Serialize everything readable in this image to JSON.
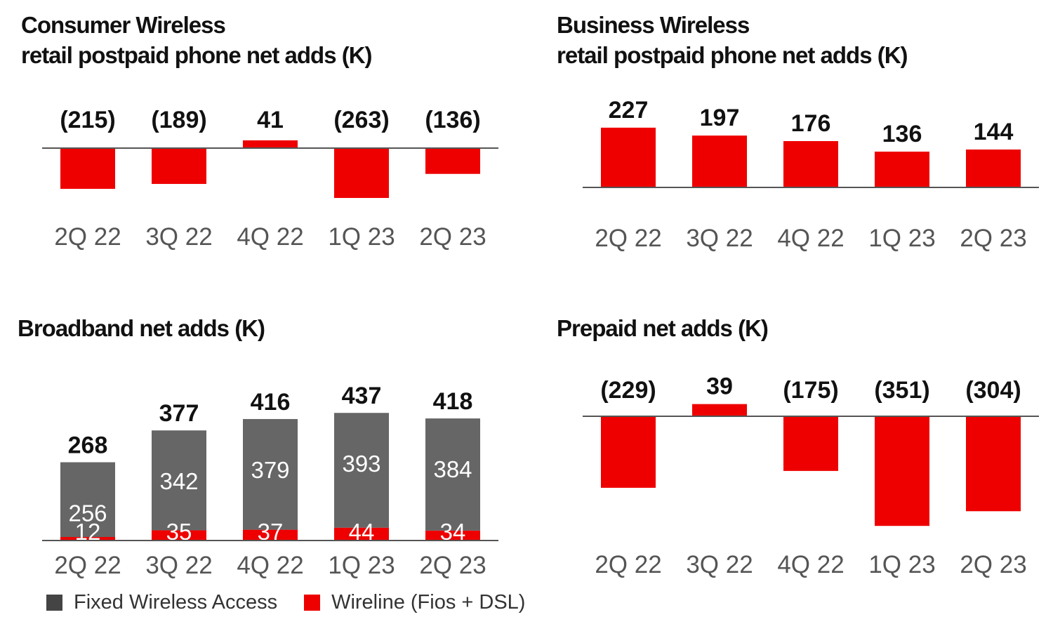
{
  "colors": {
    "red": "#ee0000",
    "gray": "#666666",
    "legend_gray": "#444444",
    "axis": "#555555",
    "value_text": "#111111",
    "tick_text": "#555555"
  },
  "panels": {
    "top_left": {
      "title_line1": "Consumer Wireless",
      "title_line2": "retail postpaid phone net adds (K)"
    },
    "top_right": {
      "title_line1": "Business Wireless",
      "title_line2": "retail postpaid phone net adds (K)"
    },
    "bottom_left": {
      "title": "Broadband net adds (K)"
    },
    "bottom_right": {
      "title": "Prepaid net adds (K)"
    }
  },
  "legend": {
    "fwa_label": "Fixed Wireless Access",
    "wireline_label": "Wireline (Fios + DSL)"
  },
  "chart_data": [
    {
      "id": "top_left",
      "type": "bar",
      "title": "Consumer Wireless retail postpaid phone net adds (K)",
      "categories": [
        "2Q 22",
        "3Q 22",
        "4Q 22",
        "1Q 23",
        "2Q 23"
      ],
      "values": [
        -215,
        -189,
        41,
        -263,
        -136
      ],
      "labels": [
        "(215)",
        "(189)",
        "41",
        "(263)",
        "(136)"
      ],
      "color": "#ee0000"
    },
    {
      "id": "top_right",
      "type": "bar",
      "title": "Business Wireless retail postpaid phone net adds (K)",
      "categories": [
        "2Q 22",
        "3Q 22",
        "4Q 22",
        "1Q 23",
        "2Q 23"
      ],
      "values": [
        227,
        197,
        176,
        136,
        144
      ],
      "labels": [
        "227",
        "197",
        "176",
        "136",
        "144"
      ],
      "color": "#ee0000"
    },
    {
      "id": "bottom_left",
      "type": "bar",
      "stacked": true,
      "title": "Broadband net adds (K)",
      "categories": [
        "2Q 22",
        "3Q 22",
        "4Q 22",
        "1Q 23",
        "2Q 23"
      ],
      "series": [
        {
          "name": "Wireline (Fios + DSL)",
          "values": [
            12,
            35,
            37,
            44,
            34
          ],
          "color": "#ee0000"
        },
        {
          "name": "Fixed Wireless Access",
          "values": [
            256,
            342,
            379,
            393,
            384
          ],
          "color": "#666666"
        }
      ],
      "totals": [
        268,
        377,
        416,
        437,
        418
      ],
      "legend": "bottom-left"
    },
    {
      "id": "bottom_right",
      "type": "bar",
      "title": "Prepaid net adds (K)",
      "categories": [
        "2Q 22",
        "3Q 22",
        "4Q 22",
        "1Q 23",
        "2Q 23"
      ],
      "values": [
        -229,
        39,
        -175,
        -351,
        -304
      ],
      "labels": [
        "(229)",
        "39",
        "(175)",
        "(351)",
        "(304)"
      ],
      "color": "#ee0000"
    }
  ]
}
